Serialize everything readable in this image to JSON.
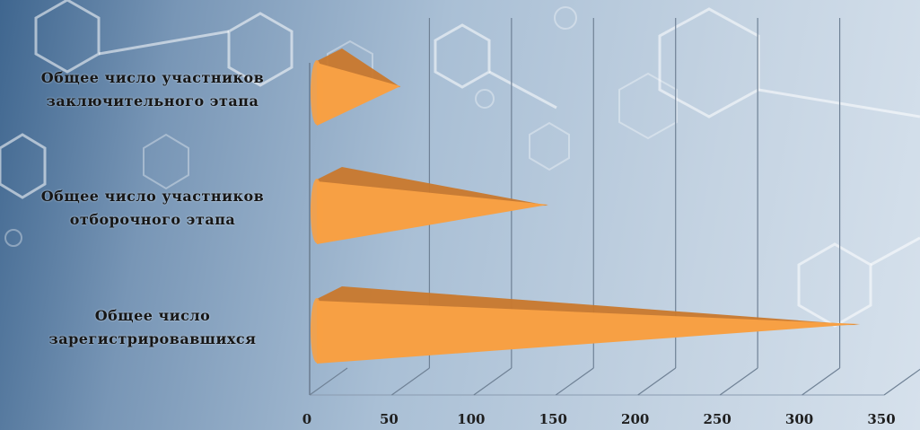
{
  "chart_data": {
    "type": "bar",
    "orientation": "horizontal",
    "style": "3d-cone",
    "categories": [
      "Общее число участников заключительного этапа",
      "Общее число участников отборочного этапа",
      "Общее число зарегистрировавшихся"
    ],
    "values": [
      45,
      135,
      325
    ],
    "xlim": [
      0,
      350
    ],
    "xticks": [
      "0",
      "50",
      "100",
      "150",
      "200",
      "250",
      "300",
      "350"
    ],
    "grid": true,
    "title": "",
    "xlabel": "",
    "ylabel": "",
    "bar_color": "#f7a044",
    "bar_color_dark": "#c9782c"
  }
}
